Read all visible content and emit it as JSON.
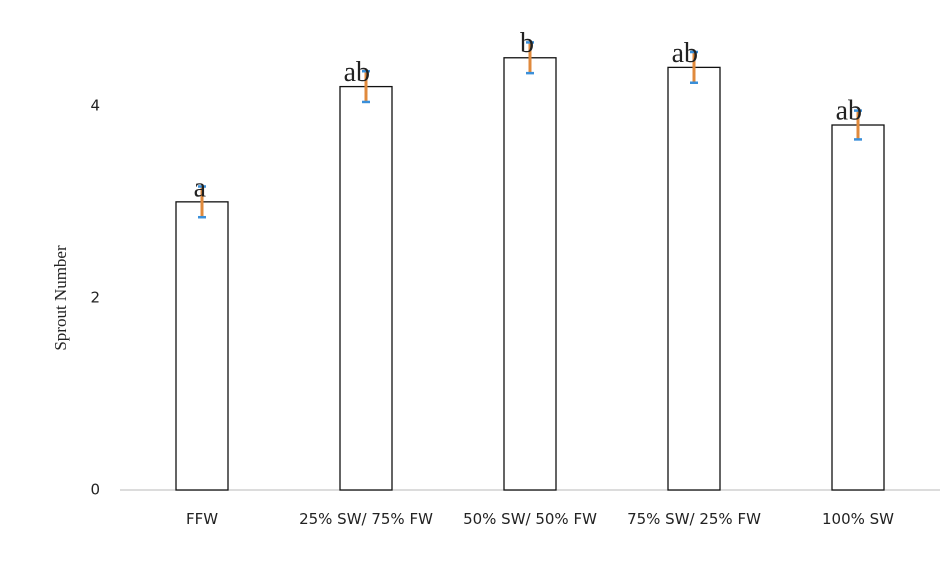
{
  "chart_data": {
    "type": "bar",
    "y_label": "Sprout Number",
    "categories": [
      "FFW",
      "25% SW/ 75% FW",
      "50% SW/ 50% FW",
      "75% SW/ 25% FW",
      "100% SW"
    ],
    "values": [
      3.0,
      4.2,
      4.5,
      4.4,
      3.8
    ],
    "errors": [
      0.16,
      0.16,
      0.16,
      0.16,
      0.15
    ],
    "annotations": [
      "a",
      "ab",
      "b",
      "ab",
      "ab"
    ],
    "color": "#ffffff",
    "ylim": [
      0,
      5
    ],
    "yticks": [
      0,
      2,
      4
    ],
    "grid": false
  }
}
